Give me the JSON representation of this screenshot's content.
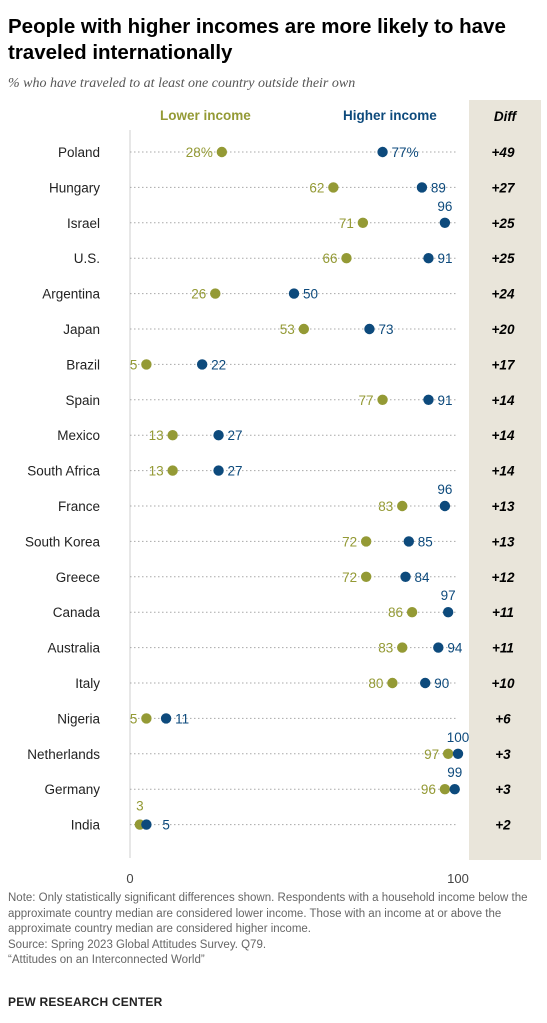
{
  "title": "People with higher incomes are more likely to have traveled internationally",
  "subtitle": "% who have traveled to at least one country outside their own",
  "colors": {
    "lower": "#949a35",
    "higher": "#0d4a7c",
    "diff_bg": "#e9e5da"
  },
  "chart_data": {
    "type": "dot",
    "legend": {
      "lower": "Lower income",
      "higher": "Higher income"
    },
    "diff_header": "Diff",
    "xlim": [
      0,
      100
    ],
    "x_ticks": [
      "0",
      "100"
    ],
    "rows": [
      {
        "country": "Poland",
        "lower": 28,
        "higher": 77,
        "lower_label": "28%",
        "higher_label": "77%",
        "diff": "+49"
      },
      {
        "country": "Hungary",
        "lower": 62,
        "higher": 89,
        "lower_label": "62",
        "higher_label": "89",
        "diff": "+27"
      },
      {
        "country": "Israel",
        "lower": 71,
        "higher": 96,
        "lower_label": "71",
        "higher_label": "96",
        "diff": "+25"
      },
      {
        "country": "U.S.",
        "lower": 66,
        "higher": 91,
        "lower_label": "66",
        "higher_label": "91",
        "diff": "+25"
      },
      {
        "country": "Argentina",
        "lower": 26,
        "higher": 50,
        "lower_label": "26",
        "higher_label": "50",
        "diff": "+24"
      },
      {
        "country": "Japan",
        "lower": 53,
        "higher": 73,
        "lower_label": "53",
        "higher_label": "73",
        "diff": "+20"
      },
      {
        "country": "Brazil",
        "lower": 5,
        "higher": 22,
        "lower_label": "5",
        "higher_label": "22",
        "diff": "+17"
      },
      {
        "country": "Spain",
        "lower": 77,
        "higher": 91,
        "lower_label": "77",
        "higher_label": "91",
        "diff": "+14"
      },
      {
        "country": "Mexico",
        "lower": 13,
        "higher": 27,
        "lower_label": "13",
        "higher_label": "27",
        "diff": "+14"
      },
      {
        "country": "South Africa",
        "lower": 13,
        "higher": 27,
        "lower_label": "13",
        "higher_label": "27",
        "diff": "+14"
      },
      {
        "country": "France",
        "lower": 83,
        "higher": 96,
        "lower_label": "83",
        "higher_label": "96",
        "diff": "+13"
      },
      {
        "country": "South Korea",
        "lower": 72,
        "higher": 85,
        "lower_label": "72",
        "higher_label": "85",
        "diff": "+13"
      },
      {
        "country": "Greece",
        "lower": 72,
        "higher": 84,
        "lower_label": "72",
        "higher_label": "84",
        "diff": "+12"
      },
      {
        "country": "Canada",
        "lower": 86,
        "higher": 97,
        "lower_label": "86",
        "higher_label": "97",
        "diff": "+11"
      },
      {
        "country": "Australia",
        "lower": 83,
        "higher": 94,
        "lower_label": "83",
        "higher_label": "94",
        "diff": "+11"
      },
      {
        "country": "Italy",
        "lower": 80,
        "higher": 90,
        "lower_label": "80",
        "higher_label": "90",
        "diff": "+10"
      },
      {
        "country": "Nigeria",
        "lower": 5,
        "higher": 11,
        "lower_label": "5",
        "higher_label": "11",
        "diff": "+6"
      },
      {
        "country": "Netherlands",
        "lower": 97,
        "higher": 100,
        "lower_label": "97",
        "higher_label": "100",
        "diff": "+3"
      },
      {
        "country": "Germany",
        "lower": 96,
        "higher": 99,
        "lower_label": "96",
        "higher_label": "99",
        "diff": "+3"
      },
      {
        "country": "India",
        "lower": 3,
        "higher": 5,
        "lower_label": "3",
        "higher_label": "5",
        "diff": "+2"
      }
    ]
  },
  "notes": {
    "note": "Note: Only statistically significant differences shown. Respondents with a household income below the approximate country median are considered lower income. Those with an income at or above the approximate country median are considered higher income.",
    "source": "Source: Spring 2023 Global Attitudes Survey. Q79.",
    "report": "“Attitudes on an Interconnected World”",
    "org": "PEW RESEARCH CENTER"
  }
}
